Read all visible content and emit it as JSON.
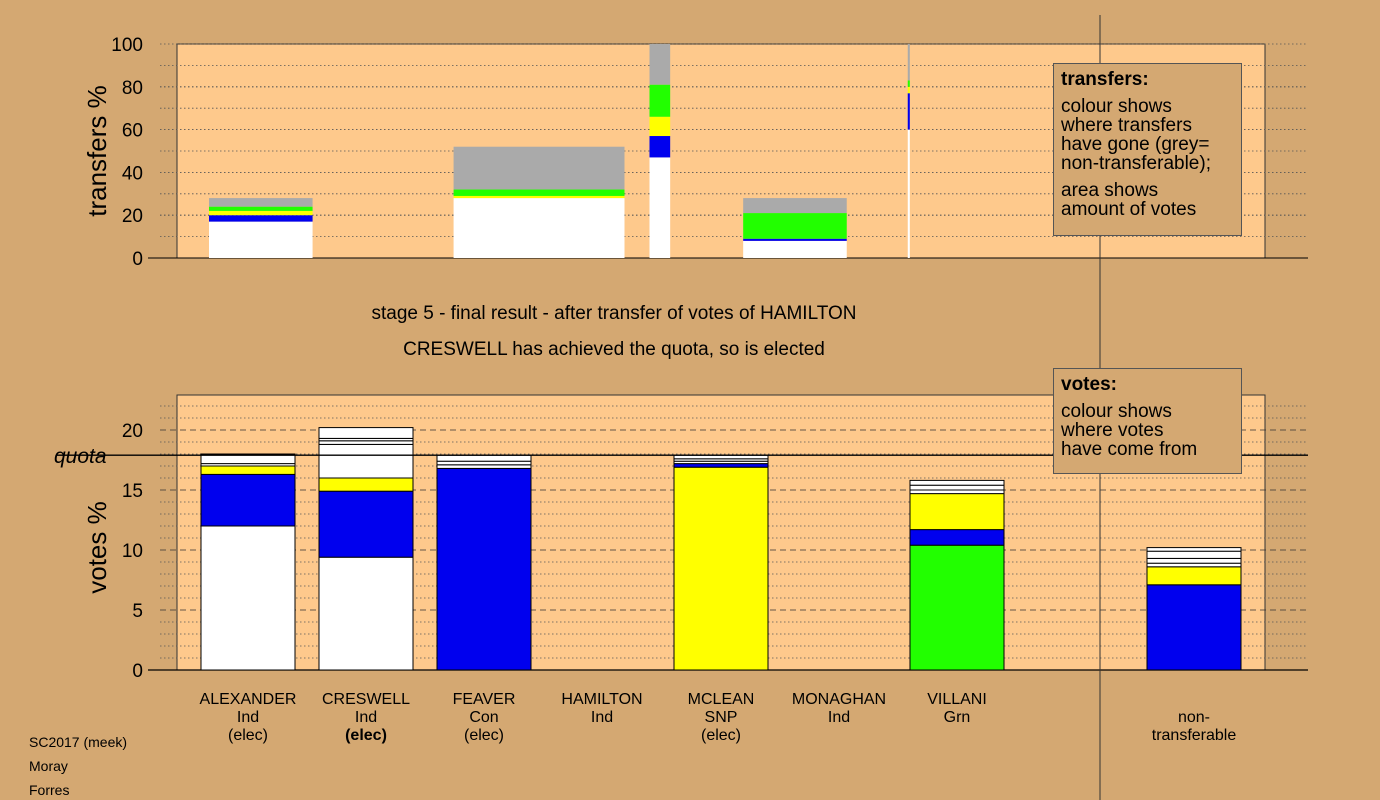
{
  "stage_caption": "stage 5 - final result - after transfer of votes of HAMILTON",
  "status_caption": "CRESWELL has achieved the quota, so is elected",
  "footer": [
    "SC2017 (meek)",
    "Moray",
    "Forres"
  ],
  "legend_transfers": {
    "title": "transfers:",
    "lines": [
      "colour shows",
      "where transfers",
      "have gone (grey=",
      "non-transferable);"
    ],
    "lines2": [
      "area shows",
      "amount of votes"
    ]
  },
  "legend_votes": {
    "title": "votes:",
    "lines": [
      "colour shows",
      "where votes",
      "have come from"
    ]
  },
  "colors": {
    "white": "#ffffff",
    "blue": "#0000ee",
    "yellow": "#ffff00",
    "green": "#22ff00",
    "grey": "#aaaaaa",
    "plot_bg": "#fec98c",
    "page_bg": "#d4a872"
  },
  "chart_data": [
    {
      "type": "bar",
      "name": "transfers",
      "ylabel": "transfers %",
      "ylim": [
        0,
        100
      ],
      "yticks": [
        0,
        20,
        40,
        60,
        80,
        100
      ],
      "bars": [
        {
          "candidate": "ALEXANDER",
          "width_share": 0.0952,
          "segments": [
            {
              "color": "white",
              "value": 17
            },
            {
              "color": "blue",
              "value": 3
            },
            {
              "color": "yellow",
              "value": 2
            },
            {
              "color": "green",
              "value": 2
            },
            {
              "color": "grey",
              "value": 4
            }
          ]
        },
        {
          "candidate": "CRESWELL",
          "width_share": 0.1571,
          "segments": [
            {
              "color": "white",
              "value": 28
            },
            {
              "color": "yellow",
              "value": 1
            },
            {
              "color": "green",
              "value": 3
            },
            {
              "color": "grey",
              "value": 20
            }
          ]
        },
        {
          "candidate": "FEAVER",
          "width_share": 0.019,
          "segments": [
            {
              "color": "white",
              "value": 47
            },
            {
              "color": "blue",
              "value": 10
            },
            {
              "color": "yellow",
              "value": 9
            },
            {
              "color": "green",
              "value": 15
            },
            {
              "color": "grey",
              "value": 19
            }
          ]
        },
        {
          "candidate": "MCLEAN",
          "width_share": 0.0952,
          "segments": [
            {
              "color": "white",
              "value": 8
            },
            {
              "color": "blue",
              "value": 1
            },
            {
              "color": "green",
              "value": 12
            },
            {
              "color": "grey",
              "value": 7
            }
          ]
        },
        {
          "candidate": "MONAGHAN",
          "width_share": 0.0019,
          "segments": [
            {
              "color": "white",
              "value": 60
            },
            {
              "color": "blue",
              "value": 17
            },
            {
              "color": "yellow",
              "value": 3
            },
            {
              "color": "green",
              "value": 3
            },
            {
              "color": "grey",
              "value": 17
            }
          ]
        }
      ]
    },
    {
      "type": "bar",
      "name": "votes",
      "ylabel": "votes %",
      "ylim": [
        0,
        20
      ],
      "yticks": [
        0,
        5,
        10,
        15,
        20
      ],
      "quota": 17.9,
      "quota_label": "quota",
      "categories": [
        "ALEXANDER",
        "CRESWELL",
        "FEAVER",
        "HAMILTON",
        "MCLEAN",
        "MONAGHAN",
        "VILLANI",
        "non-transferable"
      ],
      "bars": [
        {
          "candidate": "ALEXANDER",
          "segments": [
            {
              "color": "white",
              "value": 12.0
            },
            {
              "color": "blue",
              "value": 4.3
            },
            {
              "color": "yellow",
              "value": 0.7
            },
            {
              "color": "white",
              "value": 0.2
            },
            {
              "color": "white",
              "value": 0.8
            }
          ]
        },
        {
          "candidate": "CRESWELL",
          "segments": [
            {
              "color": "white",
              "value": 9.4
            },
            {
              "color": "blue",
              "value": 5.5
            },
            {
              "color": "yellow",
              "value": 1.1
            },
            {
              "color": "white",
              "value": 2.8
            },
            {
              "color": "white",
              "value": 0.3
            },
            {
              "color": "white",
              "value": 0.2
            },
            {
              "color": "white",
              "value": 0.9
            }
          ]
        },
        {
          "candidate": "FEAVER",
          "segments": [
            {
              "color": "blue",
              "value": 16.8
            },
            {
              "color": "white",
              "value": 0.3
            },
            {
              "color": "white",
              "value": 0.3
            },
            {
              "color": "white",
              "value": 0.5
            }
          ]
        },
        {
          "candidate": "HAMILTON",
          "segments": []
        },
        {
          "candidate": "MCLEAN",
          "segments": [
            {
              "color": "yellow",
              "value": 16.9
            },
            {
              "color": "blue",
              "value": 0.3
            },
            {
              "color": "white",
              "value": 0.2
            },
            {
              "color": "white",
              "value": 0.2
            },
            {
              "color": "white",
              "value": 0.3
            }
          ]
        },
        {
          "candidate": "MONAGHAN",
          "segments": []
        },
        {
          "candidate": "VILLANI",
          "segments": [
            {
              "color": "green",
              "value": 10.4
            },
            {
              "color": "blue",
              "value": 1.3
            },
            {
              "color": "yellow",
              "value": 3.0
            },
            {
              "color": "white",
              "value": 0.3
            },
            {
              "color": "white",
              "value": 0.4
            },
            {
              "color": "white",
              "value": 0.4
            }
          ]
        },
        {
          "candidate": "non-transferable",
          "segments": [
            {
              "color": "blue",
              "value": 7.1
            },
            {
              "color": "yellow",
              "value": 1.5
            },
            {
              "color": "white",
              "value": 0.3
            },
            {
              "color": "white",
              "value": 0.4
            },
            {
              "color": "white",
              "value": 0.6
            },
            {
              "color": "white",
              "value": 0.3
            }
          ]
        }
      ]
    }
  ],
  "candidates": [
    {
      "lines": [
        "ALEXANDER",
        "Ind",
        "(elec)"
      ],
      "bold_line": -1
    },
    {
      "lines": [
        "CRESWELL",
        "Ind",
        "(elec)"
      ],
      "bold_line": 2
    },
    {
      "lines": [
        "FEAVER",
        "Con",
        "(elec)"
      ],
      "bold_line": -1
    },
    {
      "lines": [
        "HAMILTON",
        "Ind"
      ],
      "bold_line": -1
    },
    {
      "lines": [
        "MCLEAN",
        "SNP",
        "(elec)"
      ],
      "bold_line": -1
    },
    {
      "lines": [
        "MONAGHAN",
        "Ind"
      ],
      "bold_line": -1
    },
    {
      "lines": [
        "VILLANI",
        "Grn"
      ],
      "bold_line": -1
    },
    {
      "lines": [
        "",
        "non-",
        "transferable"
      ],
      "bold_line": -1
    }
  ]
}
